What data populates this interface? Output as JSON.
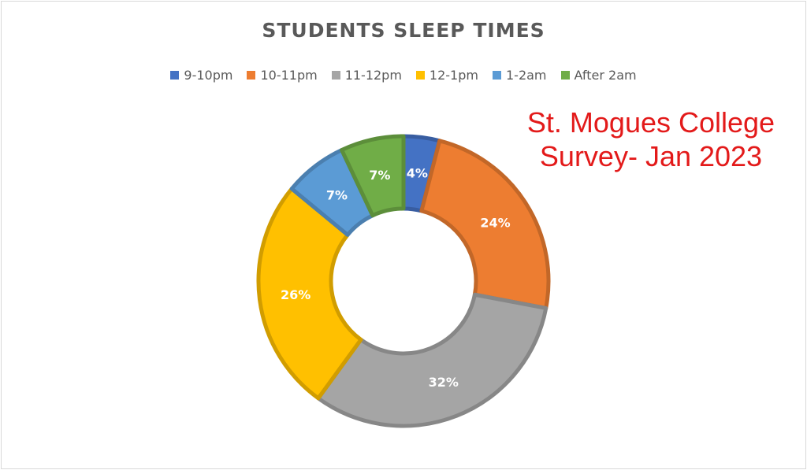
{
  "chart_data": {
    "type": "pie",
    "variant": "doughnut",
    "title": "STUDENTS SLEEP TIMES",
    "categories": [
      "9-10pm",
      "10-11pm",
      "11-12pm",
      "12-1pm",
      "1-2am",
      "After 2am"
    ],
    "values": [
      4,
      24,
      32,
      26,
      7,
      7
    ],
    "labels": [
      "4%",
      "24%",
      "32%",
      "26%",
      "7%",
      "7%"
    ],
    "unit": "%",
    "colors": [
      "#4472c4",
      "#ed7d31",
      "#a5a5a5",
      "#ffc000",
      "#5b9bd5",
      "#70ad47"
    ],
    "legend_position": "top"
  },
  "annotation": {
    "line1": "St. Mogues College",
    "line2": "Survey- Jan 2023",
    "color": "#e31a1a"
  }
}
